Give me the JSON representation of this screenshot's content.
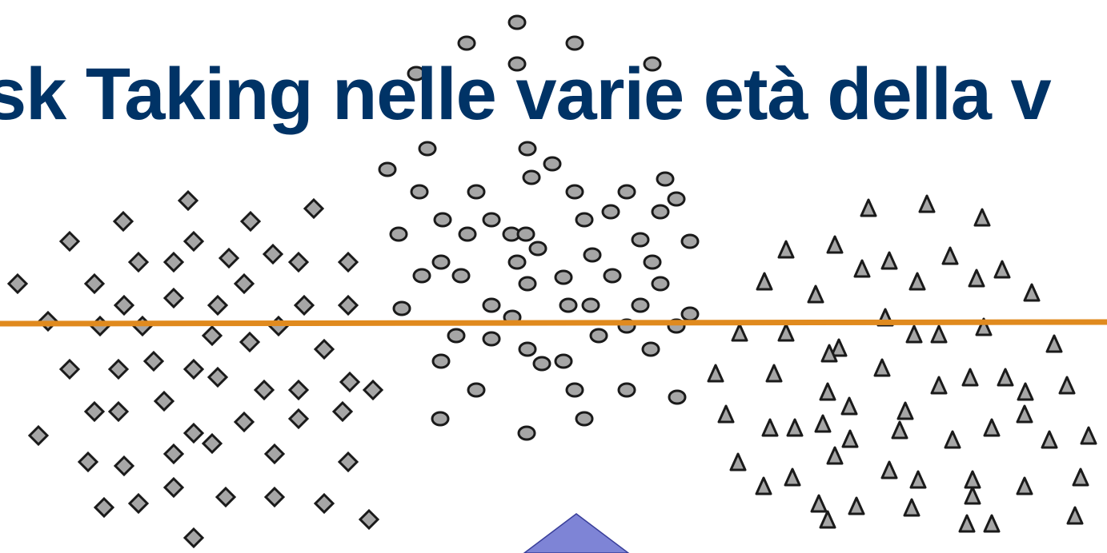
{
  "slide": {
    "title": "sk Taking nelle varie età della v"
  },
  "colors": {
    "title": "#003366",
    "divider_line": "#E08A1E",
    "marker_fill": "#A6A6A6",
    "marker_stroke": "#1A1A1A",
    "bottom_shape": "#7E84D6"
  },
  "marker_groups": [
    "diamond-cluster",
    "circle-cluster",
    "triangle-cluster"
  ]
}
